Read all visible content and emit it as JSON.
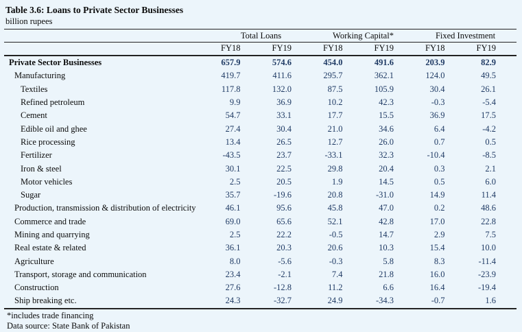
{
  "page": {
    "background_color": "#ecf5fb",
    "number_color": "#1f3a64",
    "rule_color": "#222222"
  },
  "table": {
    "title": "Table 3.6: Loans to Private Sector Businesses",
    "subtitle": "billion rupees",
    "column_groups": [
      "Total Loans",
      "Working Capital*",
      "Fixed Investment"
    ],
    "year_headers": [
      "FY18",
      "FY19",
      "FY18",
      "FY19",
      "FY18",
      "FY19"
    ],
    "rows": [
      {
        "label": "Private Sector Businesses",
        "indent": 0,
        "bold": true,
        "values": [
          "657.9",
          "574.6",
          "454.0",
          "491.6",
          "203.9",
          "82.9"
        ]
      },
      {
        "label": "Manufacturing",
        "indent": 1,
        "bold": false,
        "values": [
          "419.7",
          "411.6",
          "295.7",
          "362.1",
          "124.0",
          "49.5"
        ]
      },
      {
        "label": "Textiles",
        "indent": 2,
        "bold": false,
        "values": [
          "117.8",
          "132.0",
          "87.5",
          "105.9",
          "30.4",
          "26.1"
        ]
      },
      {
        "label": "Refined petroleum",
        "indent": 2,
        "bold": false,
        "values": [
          "9.9",
          "36.9",
          "10.2",
          "42.3",
          "-0.3",
          "-5.4"
        ]
      },
      {
        "label": "Cement",
        "indent": 2,
        "bold": false,
        "values": [
          "54.7",
          "33.1",
          "17.7",
          "15.5",
          "36.9",
          "17.5"
        ]
      },
      {
        "label": "Edible oil and ghee",
        "indent": 2,
        "bold": false,
        "values": [
          "27.4",
          "30.4",
          "21.0",
          "34.6",
          "6.4",
          "-4.2"
        ]
      },
      {
        "label": "Rice processing",
        "indent": 2,
        "bold": false,
        "values": [
          "13.4",
          "26.5",
          "12.7",
          "26.0",
          "0.7",
          "0.5"
        ]
      },
      {
        "label": "Fertilizer",
        "indent": 2,
        "bold": false,
        "values": [
          "-43.5",
          "23.7",
          "-33.1",
          "32.3",
          "-10.4",
          "-8.5"
        ]
      },
      {
        "label": "Iron & steel",
        "indent": 2,
        "bold": false,
        "values": [
          "30.1",
          "22.5",
          "29.8",
          "20.4",
          "0.3",
          "2.1"
        ]
      },
      {
        "label": "Motor vehicles",
        "indent": 2,
        "bold": false,
        "values": [
          "2.5",
          "20.5",
          "1.9",
          "14.5",
          "0.5",
          "6.0"
        ]
      },
      {
        "label": "Sugar",
        "indent": 2,
        "bold": false,
        "values": [
          "35.7",
          "-19.6",
          "20.8",
          "-31.0",
          "14.9",
          "11.4"
        ]
      },
      {
        "label": "Production, transmission & distribution of electricity",
        "indent": 1,
        "bold": false,
        "values": [
          "46.1",
          "95.6",
          "45.8",
          "47.0",
          "0.2",
          "48.6"
        ]
      },
      {
        "label": "Commerce and trade",
        "indent": 1,
        "bold": false,
        "values": [
          "69.0",
          "65.6",
          "52.1",
          "42.8",
          "17.0",
          "22.8"
        ]
      },
      {
        "label": "Mining and quarrying",
        "indent": 1,
        "bold": false,
        "values": [
          "2.5",
          "22.2",
          "-0.5",
          "14.7",
          "2.9",
          "7.5"
        ]
      },
      {
        "label": "Real estate & related",
        "indent": 1,
        "bold": false,
        "values": [
          "36.1",
          "20.3",
          "20.6",
          "10.3",
          "15.4",
          "10.0"
        ]
      },
      {
        "label": "Agriculture",
        "indent": 1,
        "bold": false,
        "values": [
          "8.0",
          "-5.6",
          "-0.3",
          "5.8",
          "8.3",
          "-11.4"
        ]
      },
      {
        "label": "Transport, storage and communication",
        "indent": 1,
        "bold": false,
        "values": [
          "23.4",
          "-2.1",
          "7.4",
          "21.8",
          "16.0",
          "-23.9"
        ]
      },
      {
        "label": "Construction",
        "indent": 1,
        "bold": false,
        "values": [
          "27.6",
          "-12.8",
          "11.2",
          "6.6",
          "16.4",
          "-19.4"
        ]
      },
      {
        "label": "Ship breaking etc.",
        "indent": 1,
        "bold": false,
        "values": [
          "24.3",
          "-32.7",
          "24.9",
          "-34.3",
          "-0.7",
          "1.6"
        ]
      }
    ],
    "footnotes": [
      "*includes trade financing",
      "Data source: State Bank of Pakistan"
    ]
  }
}
